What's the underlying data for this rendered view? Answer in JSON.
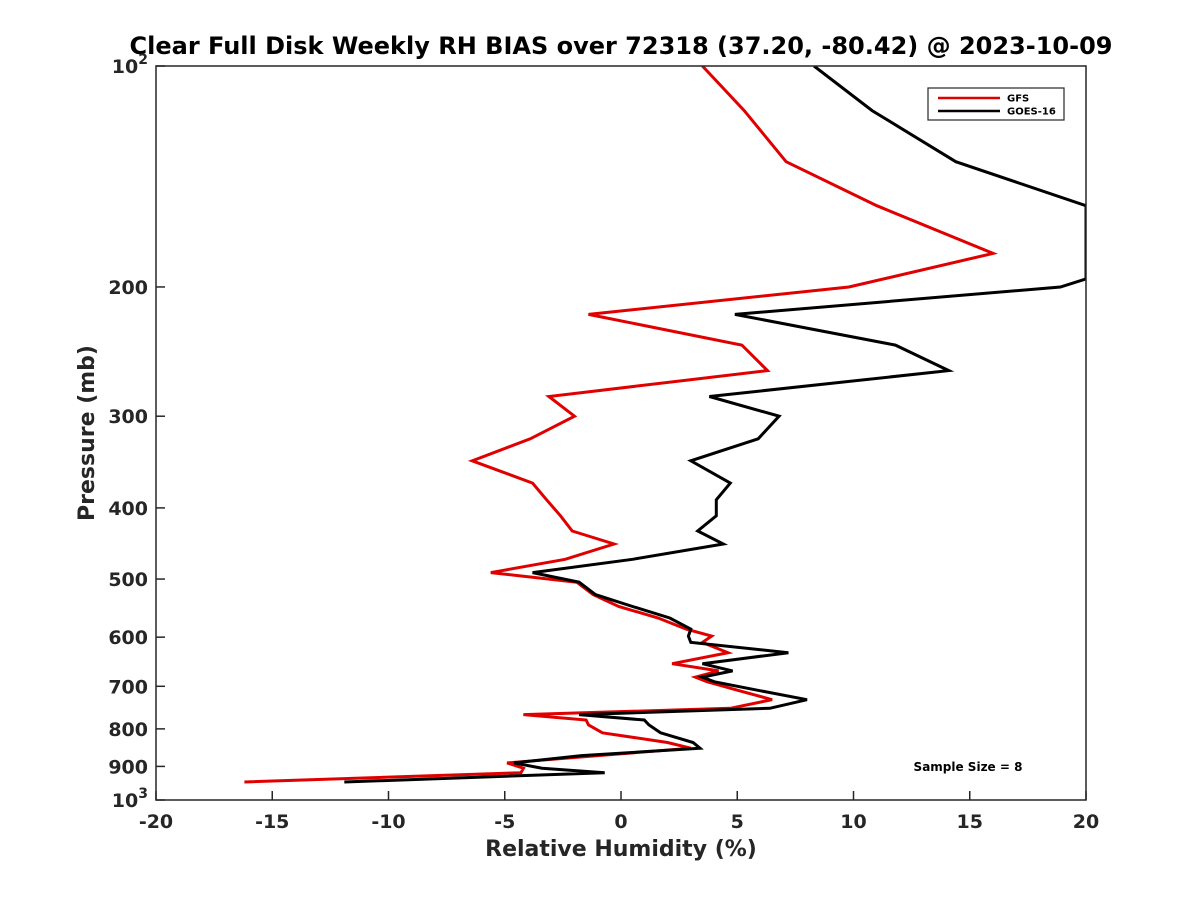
{
  "chart_data": {
    "type": "line",
    "title": "Clear Full Disk Weekly RH BIAS over 72318 (37.20, -80.42) @ 2023-10-09",
    "xlabel": "Relative Humidity (%)",
    "ylabel": "Pressure (mb)",
    "xlim": [
      -20,
      20
    ],
    "ylim": [
      100,
      1000
    ],
    "y_scale": "log",
    "y_reversed": true,
    "grid": false,
    "legend_position": "top-right",
    "x_ticks": [
      "-20",
      "-15",
      "-10",
      "-5",
      "0",
      "5",
      "10",
      "15",
      "20"
    ],
    "y_ticks": [
      {
        "value": 100,
        "base": "10",
        "exp": "2"
      },
      {
        "value": 200,
        "label": "200"
      },
      {
        "value": 300,
        "label": "300"
      },
      {
        "value": 400,
        "label": "400"
      },
      {
        "value": 500,
        "label": "500"
      },
      {
        "value": 600,
        "label": "600"
      },
      {
        "value": 700,
        "label": "700"
      },
      {
        "value": 800,
        "label": "800"
      },
      {
        "value": 900,
        "label": "900"
      },
      {
        "value": 1000,
        "base": "10",
        "exp": "3"
      }
    ],
    "annotation": "Sample Size = 8",
    "series": [
      {
        "name": "GFS",
        "color": "#e00000",
        "points": [
          [
            3.5,
            100
          ],
          [
            5.3,
            115
          ],
          [
            7.1,
            135
          ],
          [
            11.0,
            155
          ],
          [
            16.0,
            180
          ],
          [
            9.8,
            200
          ],
          [
            -1.4,
            218
          ],
          [
            5.2,
            240
          ],
          [
            6.3,
            260
          ],
          [
            -3.1,
            282
          ],
          [
            -2.0,
            300
          ],
          [
            -3.9,
            322
          ],
          [
            -6.4,
            345
          ],
          [
            -3.8,
            370
          ],
          [
            -3.2,
            390
          ],
          [
            -2.6,
            410
          ],
          [
            -2.1,
            430
          ],
          [
            -0.3,
            448
          ],
          [
            -2.4,
            470
          ],
          [
            -5.6,
            490
          ],
          [
            -1.9,
            505
          ],
          [
            -1.2,
            525
          ],
          [
            -0.1,
            545
          ],
          [
            1.6,
            565
          ],
          [
            2.8,
            585
          ],
          [
            3.9,
            598
          ],
          [
            3.5,
            610
          ],
          [
            4.6,
            630
          ],
          [
            2.2,
            652
          ],
          [
            4.2,
            667
          ],
          [
            3.2,
            680
          ],
          [
            3.7,
            690
          ],
          [
            5.1,
            710
          ],
          [
            6.5,
            730
          ],
          [
            4.7,
            750
          ],
          [
            -4.2,
            765
          ],
          [
            -1.5,
            778
          ],
          [
            -1.4,
            790
          ],
          [
            -0.8,
            810
          ],
          [
            2.0,
            835
          ],
          [
            3.0,
            850
          ],
          [
            -1.0,
            870
          ],
          [
            -4.9,
            890
          ],
          [
            -4.2,
            905
          ],
          [
            -4.3,
            918
          ],
          [
            -16.2,
            945
          ]
        ]
      },
      {
        "name": "GOES-16",
        "color": "#000000",
        "points": [
          [
            8.3,
            100
          ],
          [
            10.8,
            115
          ],
          [
            14.4,
            135
          ],
          [
            20.0,
            155
          ],
          [
            20.0,
            195
          ],
          [
            18.9,
            200
          ],
          [
            4.9,
            218
          ],
          [
            11.8,
            240
          ],
          [
            14.1,
            260
          ],
          [
            3.8,
            282
          ],
          [
            6.8,
            300
          ],
          [
            5.9,
            322
          ],
          [
            3.0,
            345
          ],
          [
            4.7,
            370
          ],
          [
            4.1,
            390
          ],
          [
            4.1,
            410
          ],
          [
            3.3,
            430
          ],
          [
            4.4,
            448
          ],
          [
            0.5,
            470
          ],
          [
            -3.8,
            490
          ],
          [
            -1.8,
            505
          ],
          [
            -1.1,
            525
          ],
          [
            0.5,
            545
          ],
          [
            2.1,
            565
          ],
          [
            3.0,
            585
          ],
          [
            2.9,
            598
          ],
          [
            3.0,
            610
          ],
          [
            7.2,
            630
          ],
          [
            3.5,
            652
          ],
          [
            4.8,
            667
          ],
          [
            3.5,
            680
          ],
          [
            4.0,
            690
          ],
          [
            6.0,
            710
          ],
          [
            8.0,
            730
          ],
          [
            6.4,
            750
          ],
          [
            -1.8,
            765
          ],
          [
            1.0,
            778
          ],
          [
            1.2,
            790
          ],
          [
            1.7,
            810
          ],
          [
            3.1,
            835
          ],
          [
            3.4,
            850
          ],
          [
            -1.7,
            870
          ],
          [
            -4.6,
            890
          ],
          [
            -3.4,
            905
          ],
          [
            -0.7,
            918
          ],
          [
            -11.9,
            945
          ]
        ]
      }
    ]
  }
}
